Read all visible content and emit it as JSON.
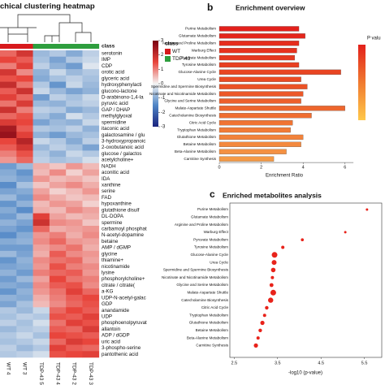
{
  "chart_data": [
    {
      "type": "heatmap",
      "title": "chical clustering heatmap",
      "class_bar_label": "class",
      "legend_title": "class",
      "series": [
        {
          "name": "WT",
          "color": "#d7191c"
        },
        {
          "name": "TDP-43",
          "color": "#2e9e3e"
        }
      ],
      "columns": [
        "WT 4",
        "WT 3",
        "TDP-43 5",
        "TDP-43 4",
        "TDP-43 2",
        "TDP-43 3"
      ],
      "column_class": [
        "WT",
        "WT",
        "TDP-43",
        "TDP-43",
        "TDP-43",
        "TDP-43"
      ],
      "rows": [
        "serotonin",
        "IMP",
        "CDP",
        "orotic acid",
        "glyceric acid",
        "hydroxyphenylacti",
        "glucono-lactone",
        "D-arabinono-1,4-la",
        "pyruvic acid",
        "GAP / DHAP",
        "methylglyoxal",
        "spermidine",
        "itaconic acid",
        "galactosamine / glu",
        "3-hydroxypropanoic",
        "2-oxobutanoic acid",
        "glucose / galactos",
        "acetylcholine+",
        "NADH",
        "aconitic acid",
        "IDA",
        "xanthine",
        "serine",
        "FAD",
        "hypoxanthine",
        "glutathione disulf",
        "DL-DOPA",
        "spermine",
        "carbamoyl phosphat",
        "N-acetyl-dopamine",
        "betaine",
        "AMP / dGMP",
        "glycine",
        "thiamine+",
        "nicotinamide",
        "lysine",
        "phosphorylcholine+",
        "citrate / citrate(",
        "a-KG",
        "UDP-N-acetyl-galac",
        "GDP",
        "anandamide",
        "UDP",
        "phosphoenolpyruvat",
        "allantoin",
        "ADP / dGDP",
        "uric acid",
        "3-phospho-serine",
        "pantothenic acid"
      ],
      "values": [
        [
          1.2,
          1.8,
          -0.8,
          -0.6,
          -1.0,
          -0.5
        ],
        [
          1.5,
          1.3,
          -0.7,
          -1.1,
          -0.6,
          -0.4
        ],
        [
          1.0,
          1.6,
          -0.5,
          -0.9,
          -1.2,
          -0.2
        ],
        [
          1.8,
          0.9,
          -0.9,
          -0.4,
          -0.8,
          -0.6
        ],
        [
          1.4,
          1.5,
          -1.0,
          -0.7,
          -0.5,
          -0.7
        ],
        [
          2.0,
          1.1,
          -0.6,
          -1.3,
          -0.4,
          -0.8
        ],
        [
          1.3,
          1.9,
          -0.4,
          -0.8,
          -1.1,
          -0.9
        ],
        [
          1.6,
          1.2,
          -1.2,
          -0.5,
          -0.7,
          -0.4
        ],
        [
          1.1,
          1.7,
          -0.8,
          -0.9,
          -0.6,
          -0.5
        ],
        [
          1.9,
          1.0,
          -0.5,
          -0.6,
          -1.0,
          -0.8
        ],
        [
          1.2,
          1.4,
          -0.7,
          -1.0,
          -0.3,
          -0.6
        ],
        [
          1.7,
          1.5,
          -1.1,
          -0.8,
          -0.9,
          -0.4
        ],
        [
          2.4,
          1.3,
          -0.6,
          -0.7,
          -0.5,
          -0.9
        ],
        [
          2.6,
          1.6,
          -0.9,
          -1.2,
          -0.8,
          -0.7
        ],
        [
          1.5,
          2.2,
          -0.4,
          -0.6,
          -1.0,
          -0.5
        ],
        [
          1.3,
          1.8,
          -0.8,
          -0.5,
          -0.7,
          -1.1
        ],
        [
          1.0,
          1.4,
          -0.6,
          -0.9,
          -0.4,
          -0.6
        ],
        [
          0.8,
          1.2,
          -0.5,
          -0.7,
          -0.6,
          -0.3
        ],
        [
          -1.2,
          -0.8,
          0.6,
          0.4,
          0.8,
          0.5
        ],
        [
          -1.0,
          -1.3,
          0.5,
          0.9,
          0.3,
          0.7
        ],
        [
          -0.9,
          -1.1,
          0.8,
          0.5,
          0.6,
          0.4
        ],
        [
          -1.4,
          -0.7,
          0.4,
          0.7,
          0.9,
          0.6
        ],
        [
          -1.1,
          -1.0,
          0.7,
          0.3,
          0.5,
          0.8
        ],
        [
          -0.8,
          -1.2,
          0.9,
          0.6,
          0.4,
          0.5
        ],
        [
          -1.3,
          -0.9,
          0.5,
          0.8,
          0.7,
          0.3
        ],
        [
          -1.0,
          -1.4,
          0.6,
          0.5,
          0.9,
          0.7
        ],
        [
          -1.2,
          -0.8,
          1.6,
          0.7,
          0.5,
          0.6
        ],
        [
          -0.9,
          -1.1,
          1.9,
          0.9,
          0.8,
          0.4
        ],
        [
          -1.1,
          -1.3,
          1.2,
          0.6,
          0.7,
          0.8
        ],
        [
          -1.4,
          -1.0,
          0.8,
          1.0,
          0.6,
          0.9
        ],
        [
          -1.0,
          -0.9,
          0.9,
          1.2,
          0.8,
          0.7
        ],
        [
          -1.2,
          -1.2,
          0.7,
          0.9,
          1.1,
          0.6
        ],
        [
          -0.8,
          -1.1,
          0.6,
          1.3,
          0.9,
          0.8
        ],
        [
          -1.3,
          -0.9,
          0.9,
          1.1,
          1.2,
          0.7
        ],
        [
          -1.1,
          -1.0,
          0.8,
          1.4,
          1.0,
          0.9
        ],
        [
          -0.9,
          -1.2,
          1.0,
          1.2,
          1.3,
          0.8
        ],
        [
          -1.2,
          -0.8,
          0.7,
          1.5,
          1.1,
          1.0
        ],
        [
          -1.0,
          -1.1,
          0.9,
          1.3,
          1.4,
          0.9
        ],
        [
          -1.3,
          -0.9,
          0.8,
          1.1,
          1.6,
          1.2
        ],
        [
          -0.9,
          -1.0,
          0.6,
          1.0,
          1.3,
          1.5
        ],
        [
          -1.1,
          -0.7,
          0.5,
          0.9,
          1.2,
          1.4
        ],
        [
          -0.6,
          -0.8,
          -0.4,
          1.2,
          1.5,
          1.3
        ],
        [
          -0.7,
          -0.5,
          -0.6,
          1.4,
          1.3,
          1.6
        ],
        [
          -0.5,
          -0.7,
          -0.3,
          1.1,
          1.6,
          1.4
        ],
        [
          -0.8,
          -0.6,
          -0.5,
          1.3,
          1.2,
          1.7
        ],
        [
          -0.6,
          -0.4,
          -0.7,
          1.5,
          1.4,
          1.3
        ],
        [
          -0.7,
          -0.6,
          -0.4,
          1.2,
          1.7,
          1.5
        ],
        [
          -0.5,
          -0.8,
          -0.6,
          1.6,
          1.3,
          1.2
        ],
        [
          -0.6,
          -0.5,
          -0.3,
          1.4,
          1.5,
          1.6
        ]
      ],
      "clim": [
        -3,
        3
      ],
      "colorbar_ticks": [
        3,
        2,
        1,
        0,
        -1,
        -2,
        -3
      ],
      "colormap": [
        "#1a237e",
        "#4f86c6",
        "#f4f4f4",
        "#e8453c",
        "#7a0010"
      ]
    },
    {
      "type": "bar",
      "orientation": "horizontal",
      "panel_label": "b",
      "title": "Enrichment overview",
      "x_label": "Enrichment Ratio",
      "categories": [
        "Purine Metabolism",
        "Glutamate Metabolism",
        "Arginine and Proline Metabolism",
        "Warburg Effect",
        "Pyruvate Metabolism",
        "Tyrosine Metabolism",
        "Glucose-Alanine Cycle",
        "Urea Cycle",
        "Spermidine and Spermine Biosynthesis",
        "Nicotinate and Nicotinamide Metabolism",
        "Glycine and Serine Metabolism",
        "Malate-Aspartate Shuttle",
        "Catecholamine Biosynthesis",
        "Citric Acid Cycle",
        "Tryptophan Metabolism",
        "Glutathione Metabolism",
        "Betaine Metabolism",
        "Beta-Alanine Metabolism",
        "Carnitine Synthesis"
      ],
      "values": [
        3.8,
        4.1,
        3.8,
        3.7,
        3.6,
        3.8,
        5.8,
        3.9,
        4.2,
        4.0,
        3.9,
        6.0,
        4.4,
        3.5,
        3.4,
        4.0,
        3.9,
        3.2,
        2.6
      ],
      "colors": [
        "#e3201b",
        "#e4261c",
        "#e52c1d",
        "#e6321e",
        "#e7381f",
        "#e83f21",
        "#e94522",
        "#ea4b24",
        "#eb5226",
        "#ec5828",
        "#ed5f2b",
        "#ee662d",
        "#ef6d30",
        "#f07433",
        "#f17b36",
        "#f2823a",
        "#f3893e",
        "#f49142",
        "#f59a46"
      ],
      "xlim": [
        0,
        6.4
      ],
      "xticks": [
        0,
        2,
        4,
        6
      ],
      "colorbar_label": "P valu",
      "colorbar_colors": [
        "#e3201b",
        "#f07a30",
        "#ffc84a"
      ]
    },
    {
      "type": "dot",
      "panel_label": "c",
      "title": "Enriched metabolites analysis",
      "x_label": "-log10 (p-value)",
      "categories": [
        "Purine Metabolism",
        "Glutamate Metabolism",
        "Arginine and Proline Metabolism",
        "Warburg Effect",
        "Pyruvate Metabolism",
        "Tyrosine Metabolism",
        "Glucose-Alanine Cycle",
        "Urea Cycle",
        "Spermidine and Spermine Biosynthesis",
        "Nicotinate and Nicotinamide Metabolism",
        "Glycine and Serine Metabolism",
        "Malate-Aspartate Shuttle",
        "Catecholamine Biosynthesis",
        "Citric Acid Cycle",
        "Tryptophan Metabolism",
        "Glutathione Metabolism",
        "Betaine Metabolism",
        "Beta-Alanine Metabolism",
        "Carnitine Synthesis"
      ],
      "values": [
        5.56,
        null,
        null,
        5.06,
        4.07,
        3.62,
        3.43,
        3.42,
        3.4,
        3.38,
        3.36,
        3.4,
        3.34,
        3.25,
        3.2,
        3.15,
        3.1,
        3.05,
        3.0
      ],
      "sizes": [
        1.5,
        null,
        null,
        1.5,
        1.8,
        2,
        3.5,
        3,
        2.8,
        2,
        2.4,
        3.5,
        3.2,
        2.2,
        2,
        2.6,
        2.2,
        2,
        2.6
      ],
      "color": "#e8231b",
      "xlim": [
        2.4,
        5.9
      ],
      "xticks": [
        2.5,
        3.5,
        4.5,
        5.5
      ]
    }
  ]
}
